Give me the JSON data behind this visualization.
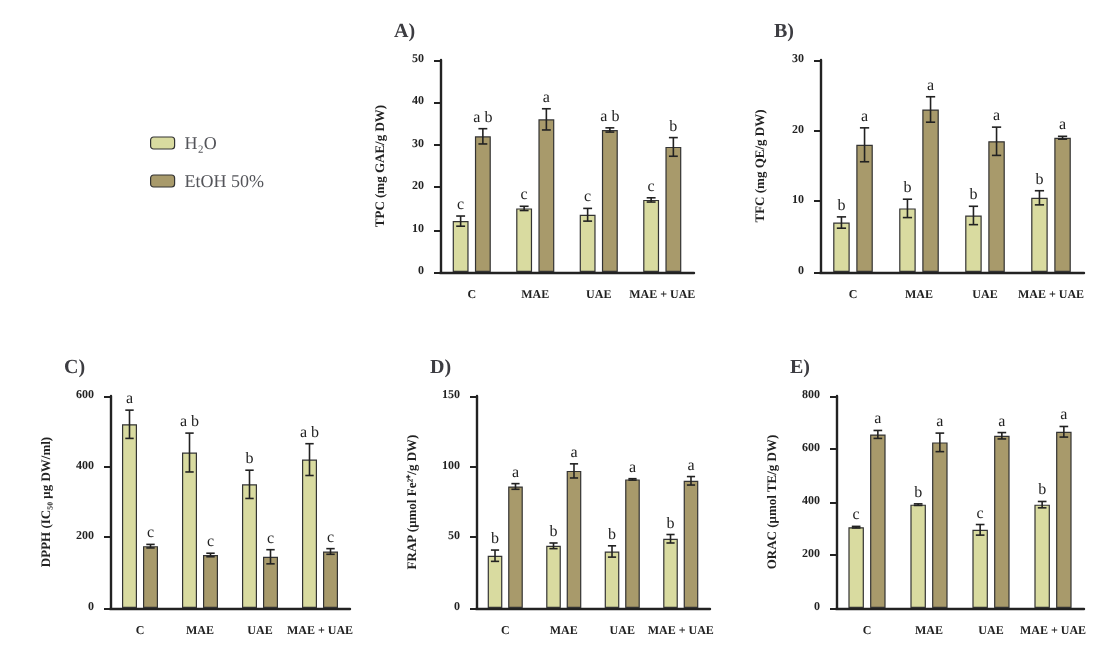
{
  "chart_data": [
    {
      "type": "bar",
      "title": "A)",
      "ylabel": "TPC (mg GAE/g DW)",
      "categories": [
        "C",
        "MAE",
        "UAE",
        "MAE + UAE"
      ],
      "ylim": [
        0,
        50
      ],
      "yticks": [
        0,
        10,
        20,
        30,
        40,
        50
      ],
      "legend": "left",
      "series": [
        {
          "name": "H₂O",
          "color": "#d9dba0",
          "values": [
            12,
            15,
            13.5,
            17
          ],
          "errors": [
            1.2,
            0.5,
            1.5,
            0.5
          ],
          "value_labels": [
            "c",
            "c",
            "c",
            "c"
          ]
        },
        {
          "name": "EtOH 50%",
          "color": "#a89a6b",
          "values": [
            32,
            36,
            33.5,
            29.5
          ],
          "errors": [
            1.8,
            2.5,
            0.5,
            2.2
          ],
          "value_labels": [
            "a b",
            "a",
            "a b",
            "b"
          ]
        }
      ]
    },
    {
      "type": "bar",
      "title": "B)",
      "ylabel": "TFC (mg QE/g DW)",
      "categories": [
        "C",
        "MAE",
        "UAE",
        "MAE + UAE"
      ],
      "ylim": [
        0,
        30
      ],
      "yticks": [
        0,
        10,
        20,
        30
      ],
      "series": [
        {
          "color": "#d9dba0",
          "values": [
            7,
            9,
            8,
            10.5
          ],
          "errors": [
            0.8,
            1.3,
            1.3,
            1
          ],
          "value_labels": [
            "b",
            "b",
            "b",
            "b"
          ]
        },
        {
          "color": "#a89a6b",
          "values": [
            18,
            23,
            18.5,
            19
          ],
          "errors": [
            2.4,
            1.8,
            2,
            0.2
          ],
          "value_labels": [
            "a",
            "a",
            "a",
            "a"
          ]
        }
      ]
    },
    {
      "type": "bar",
      "title": "C)",
      "ylabel": "DPPH (IC₅₀ μg DW/ml)",
      "categories": [
        "C",
        "MAE",
        "UAE",
        "MAE + UAE"
      ],
      "ylim": [
        0,
        600
      ],
      "yticks": [
        0,
        200,
        400,
        600
      ],
      "series": [
        {
          "color": "#d9dba0",
          "values": [
            520,
            440,
            350,
            420
          ],
          "errors": [
            40,
            55,
            40,
            45
          ],
          "value_labels": [
            "a",
            "a b",
            "b",
            "a b"
          ]
        },
        {
          "color": "#a89a6b",
          "values": [
            175,
            150,
            145,
            160
          ],
          "errors": [
            5,
            5,
            20,
            8
          ],
          "value_labels": [
            "c",
            "c",
            "c",
            "c"
          ]
        }
      ]
    },
    {
      "type": "bar",
      "title": "D)",
      "ylabel": "FRAP (μmol Fe²⁺/g DW)",
      "categories": [
        "C",
        "MAE",
        "UAE",
        "MAE + UAE"
      ],
      "ylim": [
        0,
        150
      ],
      "yticks": [
        0,
        50,
        100,
        150
      ],
      "series": [
        {
          "color": "#d9dba0",
          "values": [
            37,
            44,
            40,
            49
          ],
          "errors": [
            4,
            2,
            4,
            3
          ],
          "value_labels": [
            "b",
            "b",
            "b",
            "b"
          ]
        },
        {
          "color": "#a89a6b",
          "values": [
            86,
            97,
            91,
            90
          ],
          "errors": [
            2,
            5,
            0.5,
            3
          ],
          "value_labels": [
            "a",
            "a",
            "a",
            "a"
          ]
        }
      ]
    },
    {
      "type": "bar",
      "title": "E)",
      "ylabel": "ORAC (μmol TE/g DW)",
      "categories": [
        "C",
        "MAE",
        "UAE",
        "MAE + UAE"
      ],
      "ylim": [
        0,
        800
      ],
      "yticks": [
        0,
        200,
        400,
        600,
        800
      ],
      "series": [
        {
          "color": "#d9dba0",
          "values": [
            305,
            390,
            295,
            390
          ],
          "errors": [
            3,
            3,
            20,
            12
          ],
          "value_labels": [
            "c",
            "b",
            "c",
            "b"
          ]
        },
        {
          "color": "#a89a6b",
          "values": [
            655,
            625,
            650,
            665
          ],
          "errors": [
            15,
            35,
            12,
            20
          ],
          "value_labels": [
            "a",
            "a",
            "a",
            "a"
          ]
        }
      ]
    }
  ]
}
